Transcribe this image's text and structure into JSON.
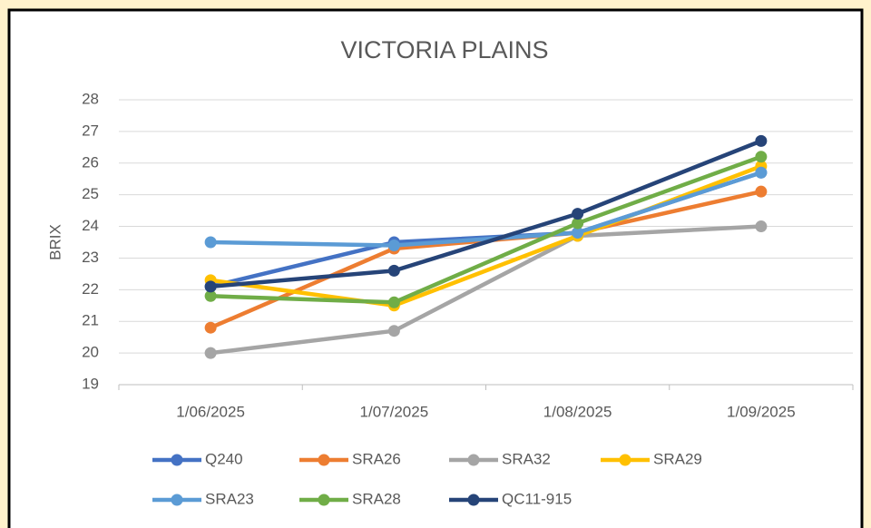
{
  "chart_data": {
    "type": "line",
    "title": "VICTORIA PLAINS",
    "y_label": "BRIX",
    "categories": [
      "1/06/2025",
      "1/07/2025",
      "1/08/2025",
      "1/09/2025"
    ],
    "series": [
      {
        "name": "Q240",
        "color": "#4472c4",
        "values": [
          22.1,
          23.5,
          23.8,
          25.7
        ]
      },
      {
        "name": "SRA26",
        "color": "#ed7d31",
        "values": [
          20.8,
          23.3,
          23.8,
          25.1
        ]
      },
      {
        "name": "SRA32",
        "color": "#a5a5a5",
        "values": [
          20.0,
          20.7,
          23.7,
          24.0
        ]
      },
      {
        "name": "SRA29",
        "color": "#ffc000",
        "values": [
          22.3,
          21.5,
          23.7,
          25.9
        ]
      },
      {
        "name": "SRA23",
        "color": "#5b9bd5",
        "values": [
          23.5,
          23.4,
          23.8,
          25.7
        ]
      },
      {
        "name": "SRA28",
        "color": "#70ad47",
        "values": [
          21.8,
          21.6,
          24.1,
          26.2
        ]
      },
      {
        "name": "QC11-915",
        "color": "#264478",
        "values": [
          22.1,
          22.6,
          24.4,
          26.7
        ]
      }
    ],
    "ylim": [
      19,
      28
    ],
    "yticks": [
      19,
      20,
      21,
      22,
      23,
      24,
      25,
      26,
      27,
      28
    ],
    "grid": true,
    "legend": "bottom"
  }
}
